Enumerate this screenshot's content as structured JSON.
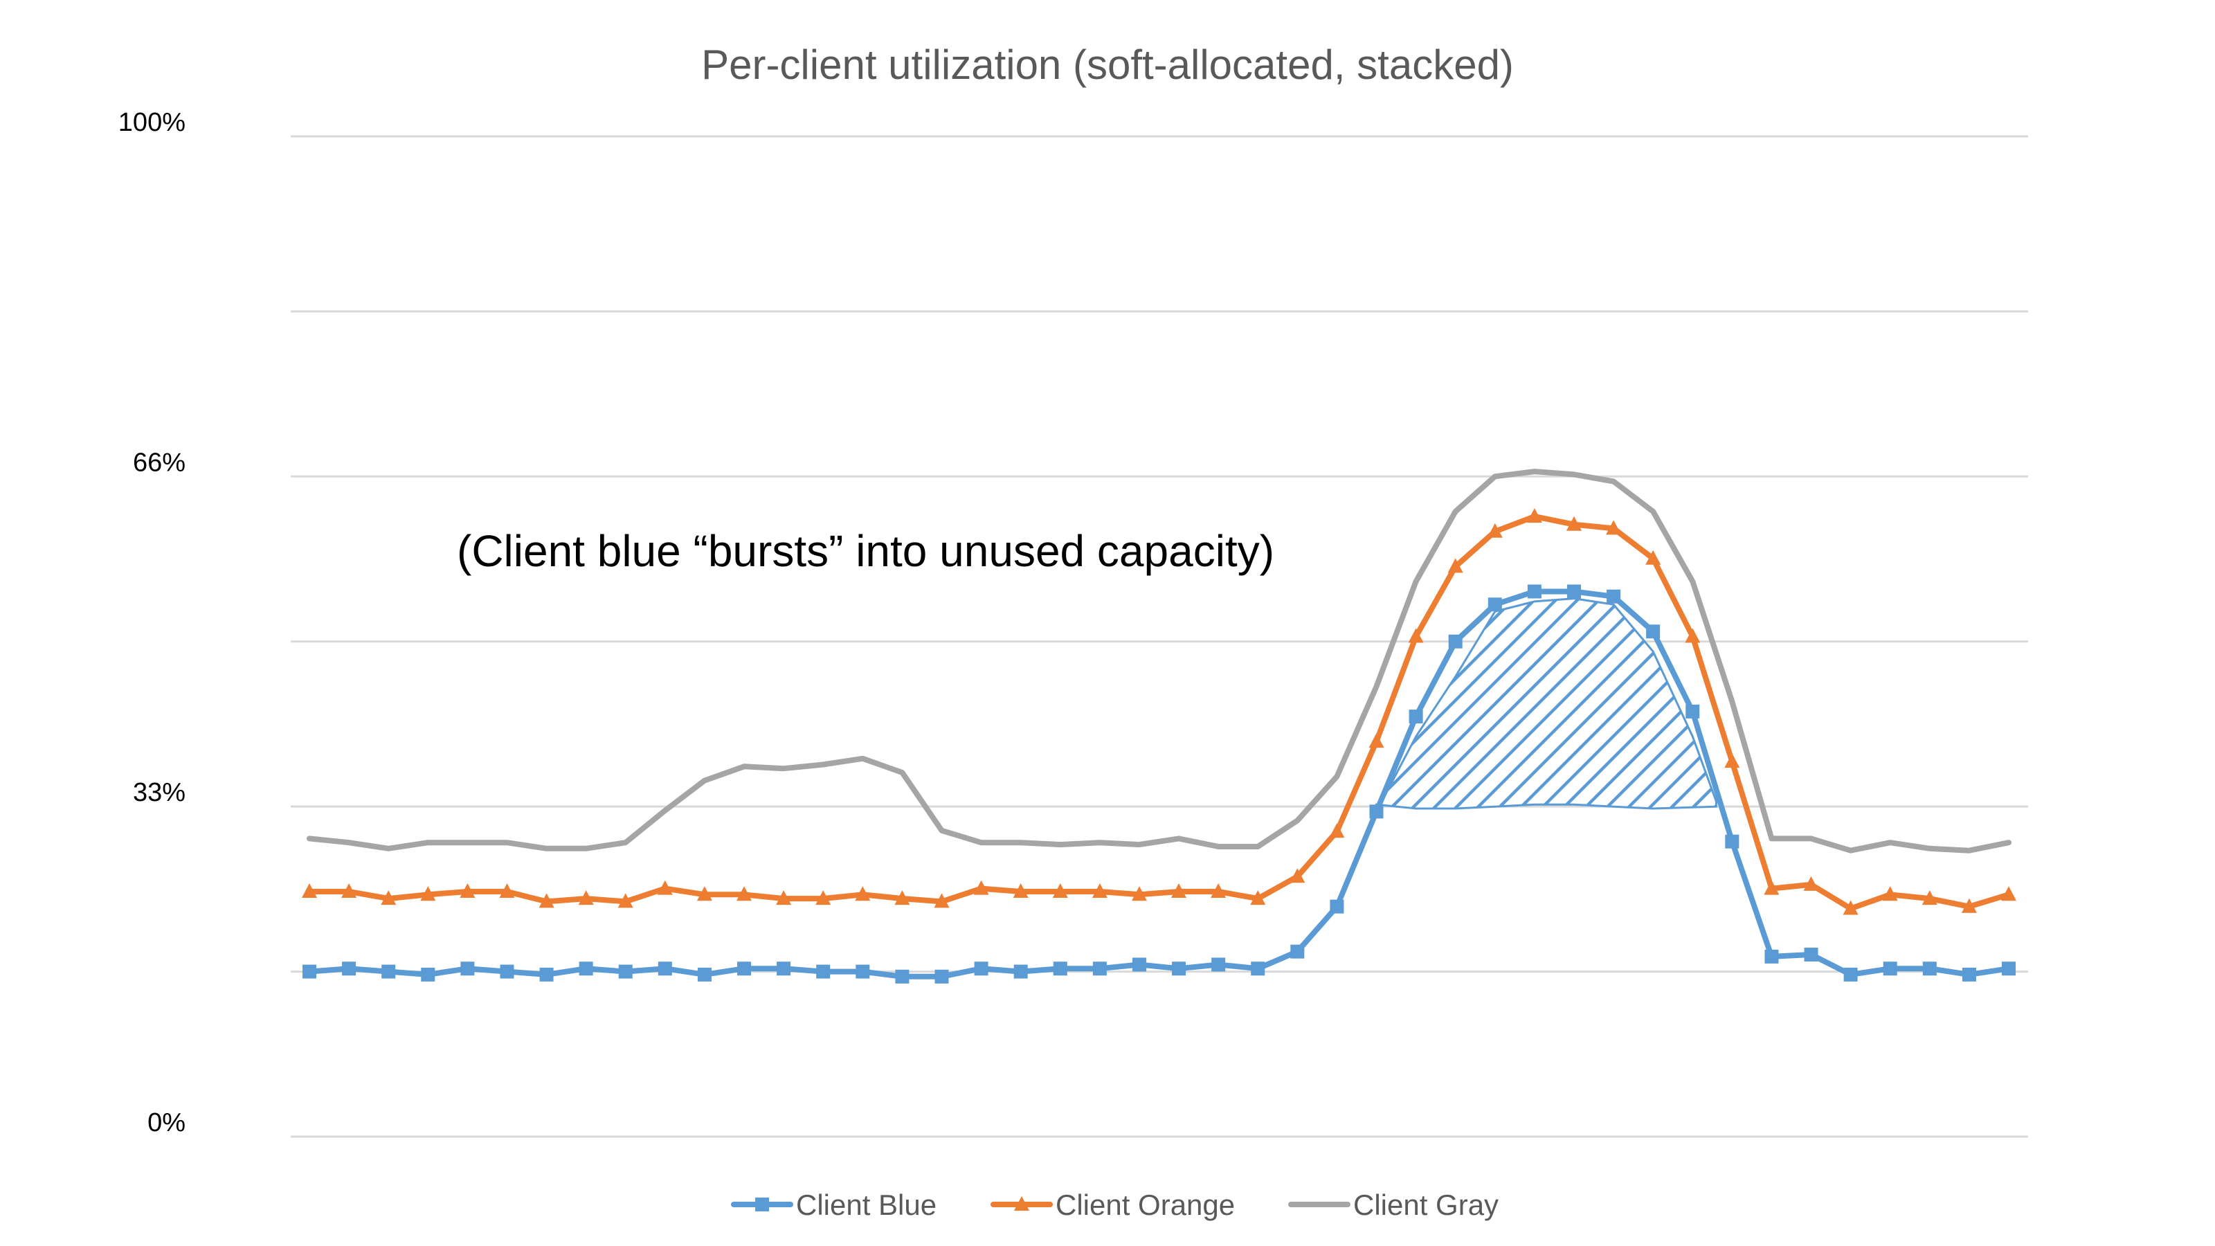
{
  "chart_data": {
    "type": "line",
    "title": "Per-client utilization (soft-allocated, stacked)",
    "xlabel": "",
    "ylabel": "",
    "ylim": [
      0,
      100
    ],
    "yticks": [
      {
        "value": 0,
        "label": "0%"
      },
      {
        "value": 33,
        "label": "33%"
      },
      {
        "value": 66,
        "label": "66%"
      },
      {
        "value": 100,
        "label": "100%"
      }
    ],
    "gridlines": [
      0,
      16.5,
      33,
      49.5,
      66,
      82.5,
      100
    ],
    "grid": true,
    "legend_position": "bottom",
    "x": [
      1,
      2,
      3,
      4,
      5,
      6,
      7,
      8,
      9,
      10,
      11,
      12,
      13,
      14,
      15,
      16,
      17,
      18,
      19,
      20,
      21,
      22,
      23,
      24,
      25,
      26,
      27,
      28,
      29,
      30,
      31,
      32,
      33,
      34,
      35,
      36,
      37,
      38,
      39,
      40,
      41,
      42,
      43,
      44
    ],
    "series": [
      {
        "name": "Client Blue",
        "color": "#5B9BD5",
        "marker": "square",
        "values": [
          16.5,
          16.8,
          16.5,
          16.2,
          16.8,
          16.5,
          16.2,
          16.8,
          16.5,
          16.8,
          16.2,
          16.8,
          16.8,
          16.5,
          16.5,
          16.0,
          16.0,
          16.8,
          16.5,
          16.8,
          16.8,
          17.2,
          16.8,
          17.2,
          16.8,
          18.5,
          23.0,
          32.5,
          42.0,
          49.5,
          53.2,
          54.5,
          54.5,
          54.0,
          50.5,
          42.5,
          29.5,
          18.0,
          18.2,
          16.2,
          16.8,
          16.8,
          16.2,
          16.8
        ]
      },
      {
        "name": "Client Orange",
        "color": "#ED7D31",
        "marker": "triangle",
        "values": [
          24.5,
          24.5,
          23.8,
          24.2,
          24.5,
          24.5,
          23.5,
          23.8,
          23.5,
          24.8,
          24.2,
          24.2,
          23.8,
          23.8,
          24.2,
          23.8,
          23.5,
          24.8,
          24.5,
          24.5,
          24.5,
          24.2,
          24.5,
          24.5,
          23.8,
          26.0,
          30.5,
          39.5,
          50.0,
          57.0,
          60.5,
          62.0,
          61.2,
          60.8,
          57.8,
          50.0,
          37.5,
          24.8,
          25.2,
          22.8,
          24.2,
          23.8,
          23.0,
          24.2
        ]
      },
      {
        "name": "Client Gray",
        "color": "#A5A5A5",
        "marker": "none",
        "values": [
          29.8,
          29.4,
          28.8,
          29.4,
          29.4,
          29.4,
          28.8,
          28.8,
          29.4,
          32.6,
          35.6,
          37.0,
          36.8,
          37.2,
          37.8,
          36.4,
          30.6,
          29.4,
          29.4,
          29.2,
          29.4,
          29.2,
          29.8,
          29.0,
          29.0,
          31.6,
          36.0,
          45.0,
          55.5,
          62.5,
          66.0,
          66.5,
          66.2,
          65.5,
          62.5,
          55.5,
          43.5,
          29.8,
          29.8,
          28.6,
          29.4,
          28.8,
          28.6,
          29.4
        ]
      }
    ],
    "annotation": {
      "text": "(Client blue “bursts” into unused capacity)",
      "hatch_color": "#5B9BD5",
      "hatch_region": {
        "top": [
          [
            28,
            32.5
          ],
          [
            29,
            40.0
          ],
          [
            30,
            46.0
          ],
          [
            31,
            52.5
          ],
          [
            32,
            53.5
          ],
          [
            33,
            53.8
          ],
          [
            34,
            53.2
          ],
          [
            35,
            48.5
          ],
          [
            36,
            40.0
          ],
          [
            36.6,
            33.5
          ]
        ],
        "bottom": [
          [
            36.6,
            33.0
          ],
          [
            35,
            32.8
          ],
          [
            34,
            33.0
          ],
          [
            33,
            33.2
          ],
          [
            32,
            33.2
          ],
          [
            31,
            33.0
          ],
          [
            30,
            32.8
          ],
          [
            29,
            32.8
          ],
          [
            28,
            33.2
          ]
        ]
      }
    }
  }
}
